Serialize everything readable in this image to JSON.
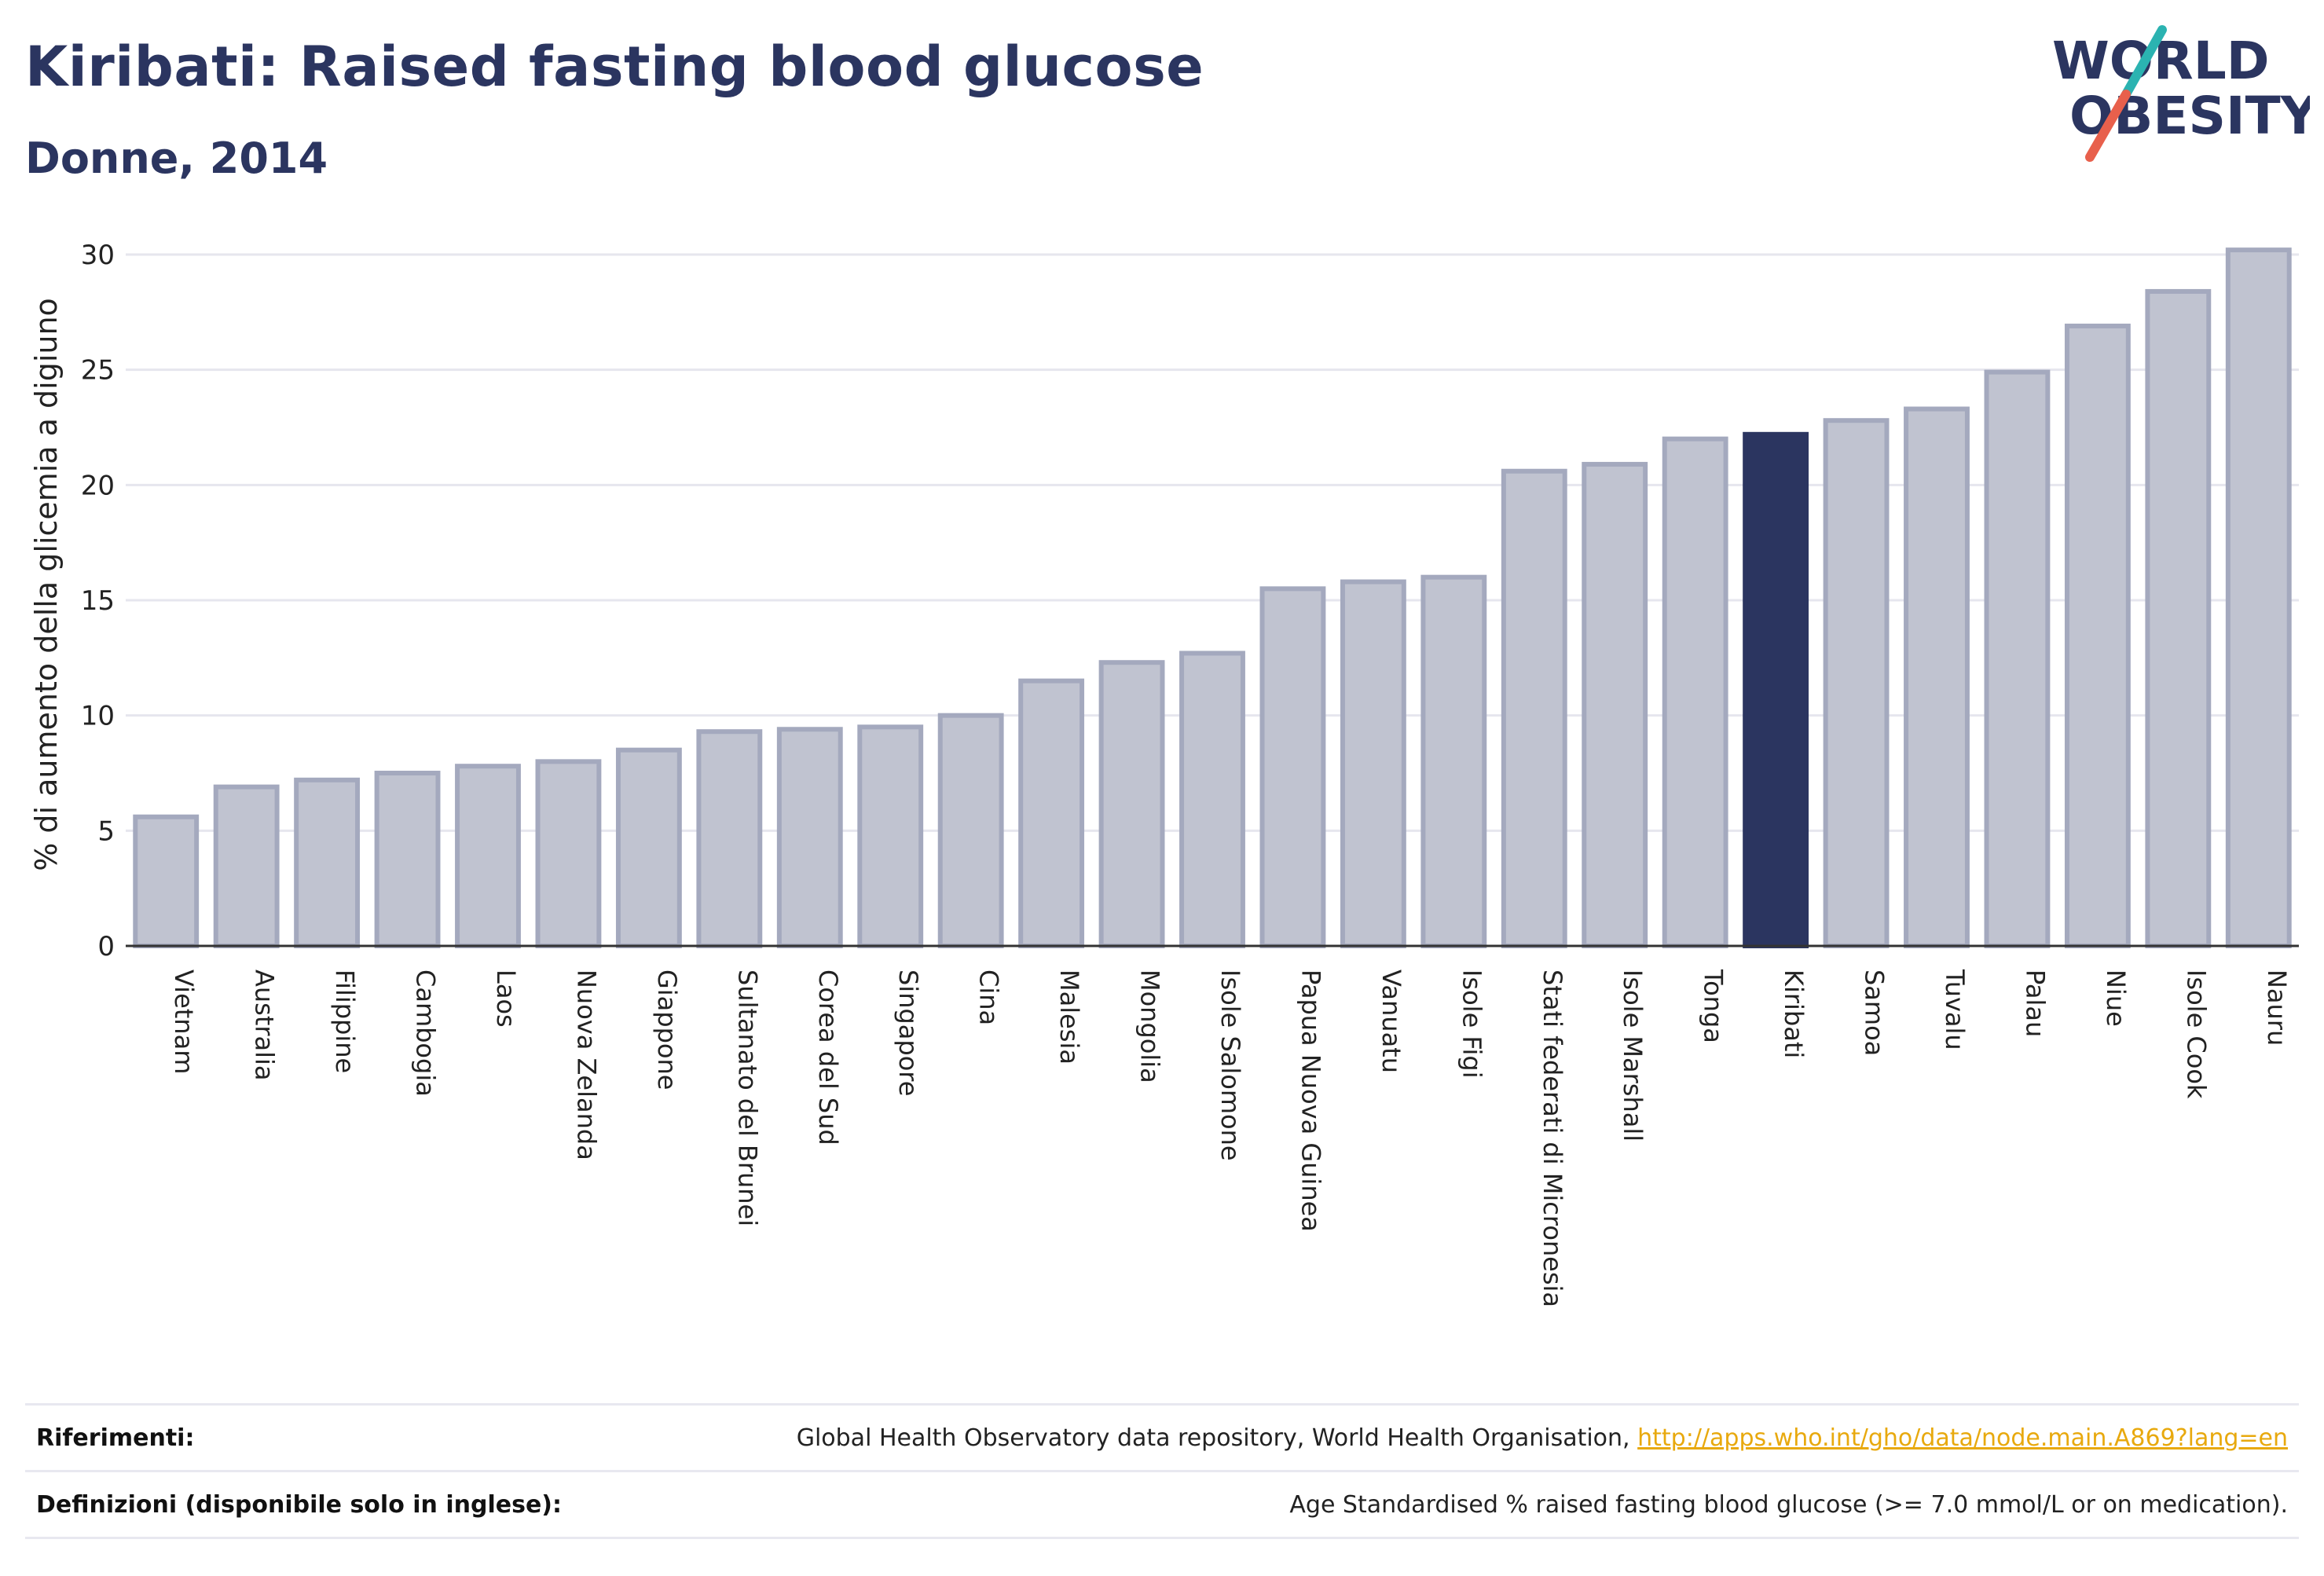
{
  "header": {
    "title": "Kiribati: Raised fasting blood glucose",
    "subtitle": "Donne, 2014"
  },
  "logo": {
    "line1": "WORLD",
    "line2": "OBESITY",
    "colors": {
      "text": "#2b3560",
      "slash_teal": "#2bb3b1",
      "slash_red": "#e8604c"
    }
  },
  "chart_data": {
    "type": "bar",
    "title": "Kiribati: Raised fasting blood glucose",
    "subtitle": "Donne, 2014",
    "xlabel": "",
    "ylabel": "% di aumento della glicemia a digiuno",
    "ylim": [
      0,
      30
    ],
    "yticks": [
      0,
      5,
      10,
      15,
      20,
      25,
      30
    ],
    "grid": true,
    "highlight": "Kiribati",
    "colors": {
      "bar": "#c0c3d0",
      "bar_edge": "#a4a9be",
      "highlight": "#2b3560",
      "grid": "#e6e6ee",
      "axis": "#333333"
    },
    "categories": [
      "Vietnam",
      "Australia",
      "Filippine",
      "Cambogia",
      "Laos",
      "Nuova Zelanda",
      "Giappone",
      "Sultanato del Brunei",
      "Corea del Sud",
      "Singapore",
      "Cina",
      "Malesia",
      "Mongolia",
      "Isole Salomone",
      "Papua Nuova Guinea",
      "Vanuatu",
      "Isole Figi",
      "Stati federati di Micronesia",
      "Isole Marshall",
      "Tonga",
      "Kiribati",
      "Samoa",
      "Tuvalu",
      "Palau",
      "Niue",
      "Isole Cook",
      "Nauru"
    ],
    "values": [
      5.6,
      6.9,
      7.2,
      7.5,
      7.8,
      8.0,
      8.5,
      9.3,
      9.4,
      9.5,
      10.0,
      11.5,
      12.3,
      12.7,
      15.5,
      15.8,
      16.0,
      20.6,
      20.9,
      22.0,
      22.2,
      22.8,
      23.3,
      24.9,
      26.9,
      28.4,
      30.2
    ]
  },
  "footer": {
    "references_label": "Riferimenti:",
    "references_text": "Global Health Observatory data repository, World Health Organisation,",
    "references_link": "http://apps.who.int/gho/data/node.main.A869?lang=en",
    "definitions_label": "Definizioni (disponibile solo in inglese):",
    "definitions_text": "Age Standardised % raised fasting blood glucose (>= 7.0 mmol/L or on medication)."
  }
}
